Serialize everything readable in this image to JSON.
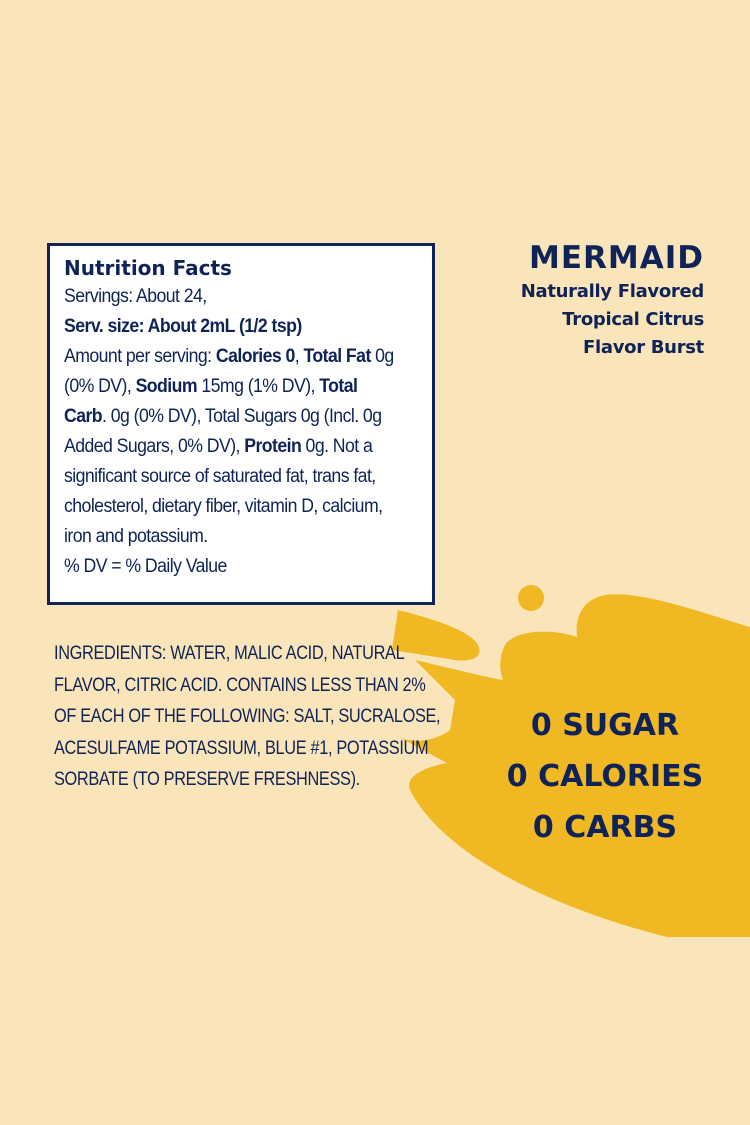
{
  "colors": {
    "background": "#fae5bb",
    "navy": "#0f2356",
    "splash": "#f0b822",
    "panel": "#ffffff"
  },
  "brand": {
    "name": "MERMAID",
    "subtitle_lines": [
      "Naturally Flavored",
      "Tropical Citrus",
      "Flavor Burst"
    ]
  },
  "nutrition": {
    "title": "Nutrition Facts",
    "servings": "Servings: About 24,",
    "serving_size": "Serv. size: About 2mL (1/2 tsp)",
    "amount_prefix": "Amount per serving: ",
    "calories": "Calories 0",
    "total_fat_label": "Total Fat",
    "total_fat_value": " 0g",
    "fat_dv": "(0% DV), ",
    "sodium_label": "Sodium",
    "sodium_value": " 15mg (1% DV), ",
    "total_label": "Total",
    "carb_label": "Carb",
    "carb_value": ". 0g (0% DV), Total Sugars 0g (Incl. 0g",
    "added_sugars": "Added Sugars, 0% DV), ",
    "protein_label": "Protein",
    "protein_value": " 0g. Not a",
    "line7": "significant source of saturated fat, trans fat,",
    "line8": "cholesterol, dietary fiber, vitamin D, calcium,",
    "line9": "iron and potassium.",
    "dv_note": "% DV = % Daily Value"
  },
  "ingredients": {
    "lines": [
      "INGREDIENTS:  WATER, MALIC ACID, NATURAL",
      "FLAVOR, CITRIC ACID. CONTAINS LESS THAN 2%",
      "OF EACH OF THE FOLLOWING: SALT, SUCRALOSE,",
      "ACESULFAME POTASSIUM, BLUE #1, POTASSIUM",
      "SORBATE (TO PRESERVE FRESHNESS)."
    ]
  },
  "claims": [
    "0 SUGAR",
    "0 CALORIES",
    "0 CARBS"
  ]
}
